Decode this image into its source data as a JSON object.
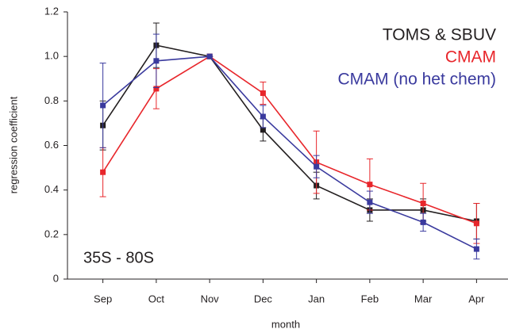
{
  "chart_data": {
    "type": "line",
    "x_label": "month",
    "y_label": "regression coefficient",
    "annotation": "35S - 80S",
    "categories": [
      "Sep",
      "Oct",
      "Nov",
      "Dec",
      "Jan",
      "Feb",
      "Mar",
      "Apr"
    ],
    "series": [
      {
        "name": "TOMS & SBUV",
        "color": "#231f20",
        "values": [
          0.69,
          1.05,
          1.0,
          0.67,
          0.42,
          0.31,
          0.31,
          0.26
        ],
        "errors": [
          0.11,
          0.1,
          0,
          0.05,
          0.06,
          0.05,
          0.05,
          0.08
        ]
      },
      {
        "name": "CMAM",
        "color": "#e8262b",
        "values": [
          0.48,
          0.855,
          1.0,
          0.835,
          0.525,
          0.425,
          0.34,
          0.25
        ],
        "errors": [
          0.11,
          0.09,
          0,
          0.05,
          0.14,
          0.115,
          0.09,
          0.09
        ]
      },
      {
        "name": "CMAM (no het chem)",
        "color": "#3a3a9e",
        "values": [
          0.78,
          0.98,
          1.0,
          0.73,
          0.505,
          0.345,
          0.255,
          0.135
        ],
        "errors": [
          0.19,
          0.12,
          0,
          0.05,
          0.05,
          0.05,
          0.04,
          0.045
        ]
      }
    ],
    "ylim": [
      0,
      1.2
    ],
    "yticks": [
      0,
      0.2,
      0.4,
      0.6,
      0.8,
      {
        "value": 1,
        "label": "1.0"
      },
      1.2
    ],
    "legend": "upper right"
  }
}
